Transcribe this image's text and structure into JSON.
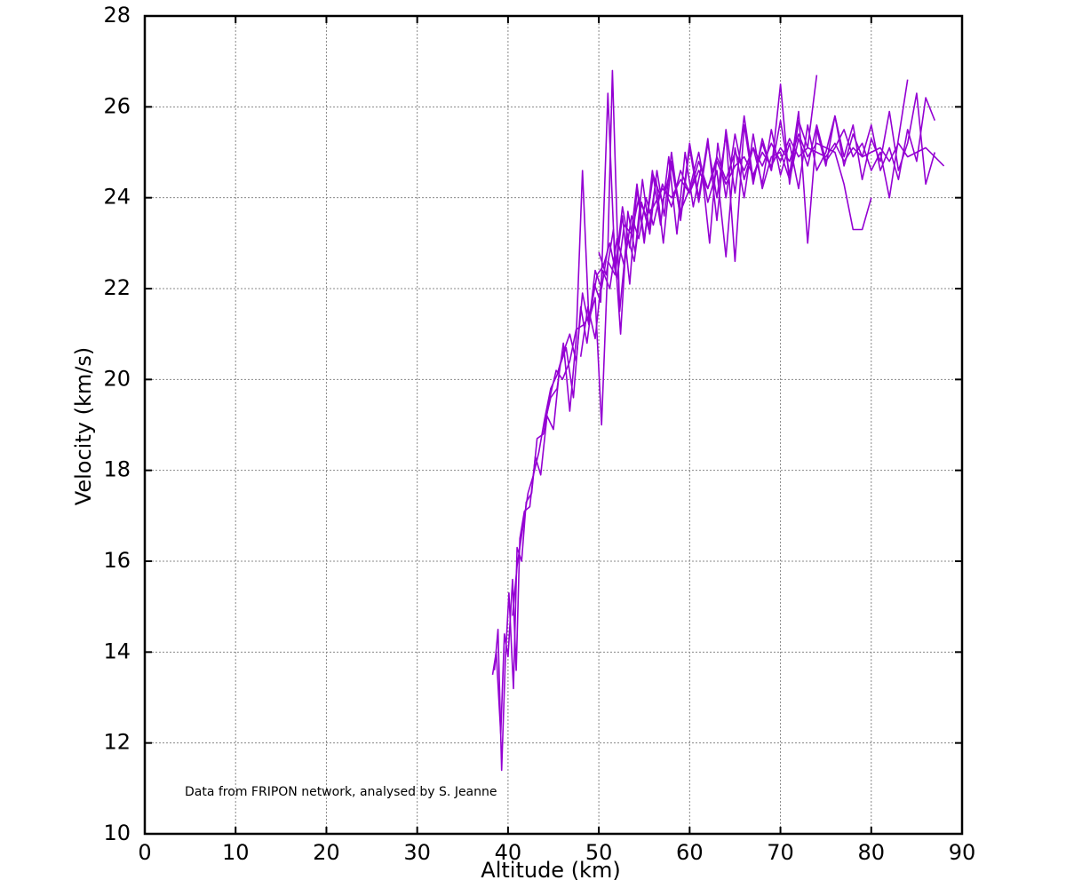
{
  "chart_data": {
    "type": "line",
    "xlabel": "Altitude (km)",
    "ylabel": "Velocity (km/s)",
    "xlim": [
      0,
      90
    ],
    "ylim": [
      10,
      28
    ],
    "xticks": [
      "0",
      "10",
      "20",
      "30",
      "40",
      "50",
      "60",
      "70",
      "80",
      "90"
    ],
    "yticks": [
      "10",
      "12",
      "14",
      "16",
      "18",
      "20",
      "22",
      "24",
      "26",
      "28"
    ],
    "grid": true,
    "legend": "none",
    "line_color": "#9400D3",
    "annotation": "Data from FRIPON network, analysed by S. Jeanne",
    "series": [
      {
        "x": [
          38.5,
          38.9,
          39.3,
          39.7,
          40.1,
          40.6,
          41.0,
          41.5,
          42.0,
          42.6,
          43.2,
          43.9,
          44.6,
          45.3,
          46.0,
          46.8,
          47.5,
          48.3,
          49.0,
          49.8,
          50.5,
          51.2,
          52.0,
          52.8,
          53.6,
          54.4,
          55.2,
          56.0,
          57.0,
          58.0,
          59.0,
          60.0,
          61.0,
          62.0,
          63.0,
          64.0,
          65.0,
          66.0,
          67.0,
          68.0,
          69.0,
          70.0,
          71.0,
          72.0,
          73.0,
          74.0,
          75.0,
          76.0,
          77.0,
          78.0,
          79.0,
          80.0
        ],
        "y": [
          13.6,
          14.5,
          11.4,
          13.8,
          15.3,
          13.2,
          16.3,
          16.0,
          17.3,
          17.5,
          18.7,
          18.8,
          19.6,
          20.2,
          20.0,
          20.4,
          21.1,
          21.2,
          21.4,
          22.3,
          22.5,
          23.0,
          22.2,
          23.4,
          23.2,
          24.0,
          23.6,
          23.8,
          24.2,
          24.0,
          24.4,
          24.1,
          24.6,
          24.2,
          24.8,
          24.3,
          24.7,
          24.9,
          24.5,
          25.0,
          24.7,
          25.1,
          24.8,
          25.4,
          24.9,
          25.2,
          25.1,
          25.0,
          24.3,
          23.3,
          23.3,
          24.0
        ]
      },
      {
        "x": [
          38.3,
          38.7,
          39.2,
          39.6,
          40.0,
          40.5,
          40.9,
          41.3,
          41.8,
          42.4,
          43.0,
          43.6,
          44.3,
          45.0,
          45.7,
          46.4,
          47.2,
          48.0,
          48.7,
          49.5,
          50.2,
          51.0,
          51.8,
          52.6,
          53.4,
          54.2,
          55.0,
          56.0,
          57.0,
          58.0,
          59.0,
          60.0,
          61.0,
          62.0,
          63.0,
          64.0,
          65.0,
          66.0,
          67.0,
          68.0,
          69.0,
          70.0,
          71.0,
          72.0,
          73.0,
          74.0
        ],
        "y": [
          13.5,
          14.0,
          12.2,
          14.4,
          13.9,
          15.6,
          13.6,
          16.5,
          17.1,
          17.2,
          18.3,
          17.9,
          19.2,
          18.9,
          20.3,
          20.7,
          19.6,
          21.6,
          20.8,
          22.1,
          21.7,
          26.3,
          22.4,
          23.8,
          22.9,
          24.3,
          23.1,
          24.5,
          23.9,
          24.7,
          23.6,
          25.2,
          24.0,
          25.3,
          23.5,
          25.5,
          24.1,
          25.8,
          24.4,
          25.2,
          24.6,
          26.5,
          24.3,
          25.7,
          25.1,
          26.7
        ]
      },
      {
        "x": [
          40.5,
          41.0,
          41.6,
          42.2,
          42.8,
          43.4,
          44.0,
          44.7,
          45.4,
          46.1,
          46.8,
          47.5,
          48.2,
          48.9,
          49.6,
          50.3,
          51.0,
          51.5,
          52.3,
          53.1,
          53.9,
          54.7,
          55.5,
          56.3,
          57.1,
          58.0,
          59.0,
          60.0,
          61.0,
          62.0,
          63.0,
          64.0,
          65.0,
          66.0,
          67.0,
          68.0,
          69.0,
          70.0,
          71.0,
          72.0,
          73.0,
          74.0,
          75.0,
          76.0,
          77.0,
          78.0,
          79.0,
          80.0,
          81.0,
          82.0,
          83.0,
          84.0
        ],
        "y": [
          14.8,
          15.9,
          16.7,
          17.5,
          17.9,
          18.4,
          19.1,
          19.8,
          20.1,
          20.6,
          21.0,
          20.4,
          21.9,
          21.2,
          22.4,
          22.0,
          22.9,
          26.8,
          21.5,
          23.2,
          22.6,
          23.9,
          23.3,
          24.4,
          23.0,
          24.8,
          23.7,
          24.2,
          25.0,
          23.9,
          24.6,
          22.7,
          25.1,
          24.0,
          25.4,
          24.2,
          24.9,
          25.0,
          24.4,
          25.3,
          24.7,
          25.6,
          24.8,
          25.1,
          25.5,
          24.9,
          25.2,
          24.6,
          25.0,
          24.0,
          25.3,
          26.6
        ]
      },
      {
        "x": [
          44.0,
          44.7,
          45.4,
          46.1,
          46.8,
          47.5,
          48.2,
          48.9,
          49.6,
          50.3,
          51.0,
          51.8,
          52.6,
          53.4,
          54.2,
          55.0,
          55.9,
          56.8,
          57.7,
          58.6,
          59.5,
          60.4,
          61.3,
          62.2,
          63.1,
          64.0,
          65.0,
          66.0,
          67.0,
          68.0,
          69.0,
          70.0,
          71.0,
          72.0,
          73.0,
          74.0,
          75.0,
          76.0,
          77.0,
          78.0,
          79.0,
          80.0,
          81.0,
          82.0,
          83.0,
          84.0,
          85.0,
          86.0,
          87.0
        ],
        "y": [
          19.0,
          19.6,
          19.8,
          20.8,
          19.3,
          20.9,
          24.6,
          21.3,
          21.8,
          19.0,
          22.6,
          22.3,
          23.6,
          22.1,
          24.2,
          23.0,
          24.6,
          23.4,
          24.9,
          23.2,
          25.0,
          23.8,
          24.7,
          23.0,
          25.2,
          24.0,
          25.4,
          24.4,
          25.1,
          24.3,
          25.5,
          24.5,
          25.2,
          24.2,
          25.6,
          24.6,
          25.0,
          25.8,
          24.7,
          25.4,
          24.9,
          25.6,
          24.6,
          25.1,
          24.4,
          25.5,
          24.8,
          26.2,
          25.7
        ]
      },
      {
        "x": [
          48.0,
          48.8,
          49.6,
          50.4,
          51.2,
          52.0,
          52.8,
          53.6,
          54.4,
          55.2,
          56.0,
          57.0,
          58.0,
          59.0,
          60.0,
          61.0,
          62.0,
          63.0,
          64.0,
          65.0,
          66.0,
          67.0,
          68.0,
          69.0,
          70.0,
          71.0,
          72.0,
          73.0,
          74.0,
          75.0,
          76.0,
          77.0,
          78.0,
          79.0,
          80.0,
          81.0,
          82.0,
          83.0,
          84.0,
          85.0,
          86.0,
          87.0,
          88.0
        ],
        "y": [
          20.5,
          21.6,
          20.9,
          22.4,
          22.0,
          23.1,
          22.5,
          23.6,
          23.1,
          24.0,
          23.4,
          24.3,
          23.8,
          24.6,
          24.1,
          24.8,
          24.2,
          24.9,
          24.4,
          25.0,
          24.6,
          25.1,
          24.7,
          25.2,
          24.8,
          25.3,
          24.9,
          25.1,
          25.0,
          24.9,
          25.2,
          24.8,
          25.1,
          24.9,
          25.0,
          25.1,
          24.8,
          25.2,
          24.9,
          25.0,
          25.1,
          24.9,
          24.7
        ]
      },
      {
        "x": [
          50.0,
          50.8,
          51.6,
          52.4,
          53.2,
          54.0,
          54.8,
          55.6,
          56.4,
          57.2,
          58.0,
          59.0,
          60.0,
          61.0,
          62.0,
          63.0,
          64.0,
          65.0,
          66.0,
          67.0,
          68.0,
          69.0,
          70.0,
          71.0,
          72.0,
          73.0,
          74.0,
          75.0,
          76.0,
          77.0,
          78.0,
          79.0,
          80.0,
          81.0,
          82.0,
          83.0,
          84.0,
          85.0,
          86.0,
          87.0
        ],
        "y": [
          22.8,
          22.3,
          23.3,
          21.0,
          23.7,
          22.8,
          24.4,
          23.2,
          24.6,
          23.6,
          25.0,
          23.5,
          25.1,
          23.9,
          25.2,
          24.0,
          25.4,
          22.6,
          25.6,
          24.3,
          25.3,
          24.6,
          25.7,
          24.5,
          25.9,
          23.0,
          25.5,
          24.7,
          25.8,
          24.9,
          25.6,
          24.4,
          25.3,
          24.8,
          25.9,
          24.6,
          25.2,
          26.3,
          24.3,
          25.0
        ]
      }
    ]
  }
}
